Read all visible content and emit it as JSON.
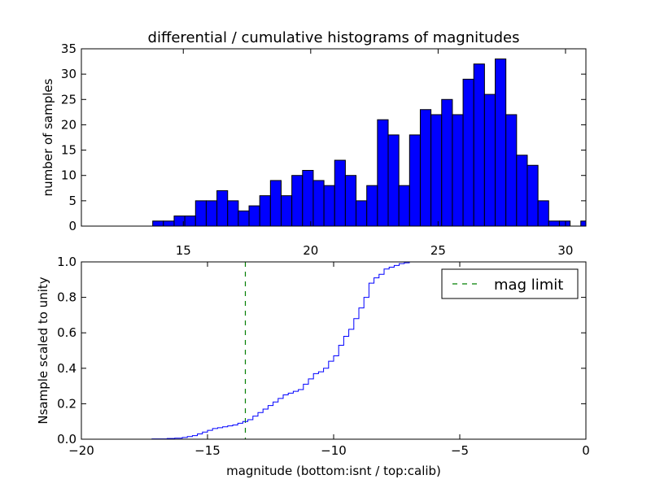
{
  "title": "differential / cumulative histograms of magnitudes",
  "chart_data": [
    {
      "type": "bar",
      "id": "top",
      "ylabel": "number of samples",
      "xlim": [
        11,
        30.8
      ],
      "ylim": [
        0,
        35
      ],
      "xticks": [
        15,
        20,
        25,
        30
      ],
      "yticks": [
        0,
        5,
        10,
        15,
        20,
        25,
        30,
        35
      ],
      "xtick_labels": [
        "15",
        "20",
        "25",
        "30"
      ],
      "ytick_labels": [
        "0",
        "5",
        "10",
        "15",
        "20",
        "25",
        "30",
        "35"
      ],
      "bin_start": 13.8,
      "bin_width": 0.42,
      "values": [
        1,
        1,
        2,
        2,
        5,
        5,
        7,
        5,
        3,
        4,
        6,
        9,
        6,
        10,
        11,
        9,
        8,
        13,
        10,
        5,
        8,
        21,
        18,
        8,
        18,
        23,
        22,
        25,
        22,
        29,
        32,
        26,
        33,
        22,
        14,
        12,
        5,
        1,
        1,
        0,
        1
      ],
      "bar_color": "#0000ff"
    },
    {
      "type": "line",
      "id": "bottom",
      "step": true,
      "xlabel": "magnitude (bottom:isnt / top:calib)",
      "ylabel": "Nsample scaled to unity",
      "xlim": [
        -20,
        0
      ],
      "ylim": [
        0,
        1.0
      ],
      "xticks": [
        -20,
        -15,
        -10,
        -5,
        0
      ],
      "yticks": [
        0,
        0.2,
        0.4,
        0.6,
        0.8,
        1.0
      ],
      "xtick_labels": [
        "−20",
        "−15",
        "−10",
        "−5",
        "0"
      ],
      "ytick_labels": [
        "0.0",
        "0.2",
        "0.4",
        "0.6",
        "0.8",
        "1.0"
      ],
      "x": [
        -20,
        -17.2,
        -16.6,
        -16.3,
        -16.0,
        -15.8,
        -15.6,
        -15.4,
        -15.2,
        -15.0,
        -14.8,
        -14.6,
        -14.4,
        -14.2,
        -14.0,
        -13.8,
        -13.6,
        -13.4,
        -13.2,
        -13.0,
        -12.8,
        -12.6,
        -12.4,
        -12.2,
        -12.0,
        -11.8,
        -11.6,
        -11.4,
        -11.2,
        -11.0,
        -10.8,
        -10.6,
        -10.4,
        -10.2,
        -10.0,
        -9.8,
        -9.6,
        -9.4,
        -9.2,
        -9.0,
        -8.8,
        -8.6,
        -8.4,
        -8.2,
        -8.0,
        -7.8,
        -7.6,
        -7.4,
        -7.2,
        -7.0,
        -6.8,
        -6.6,
        -6.4,
        -0.05
      ],
      "y": [
        0,
        0.002,
        0.004,
        0.006,
        0.01,
        0.015,
        0.02,
        0.03,
        0.04,
        0.05,
        0.06,
        0.065,
        0.07,
        0.075,
        0.08,
        0.09,
        0.1,
        0.11,
        0.13,
        0.15,
        0.17,
        0.19,
        0.21,
        0.23,
        0.25,
        0.26,
        0.27,
        0.28,
        0.31,
        0.34,
        0.37,
        0.38,
        0.4,
        0.44,
        0.47,
        0.53,
        0.58,
        0.62,
        0.68,
        0.74,
        0.8,
        0.88,
        0.91,
        0.93,
        0.96,
        0.97,
        0.98,
        0.99,
        0.995,
        1.0,
        1.0,
        1.0,
        1.0,
        1.0
      ],
      "line_color": "#0000ff",
      "vline": {
        "x": -13.5,
        "color": "#007f00",
        "style": "dashed",
        "label": "mag limit"
      },
      "legend": {
        "location": "upper right",
        "entries": [
          "mag limit"
        ]
      }
    }
  ]
}
